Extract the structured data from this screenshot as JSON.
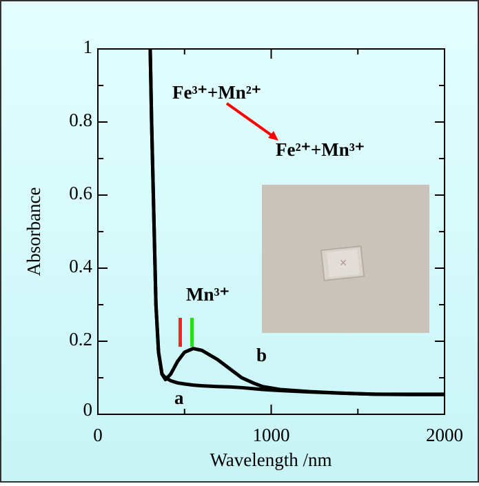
{
  "chart_data": {
    "type": "line",
    "xlabel": "Wavelength /nm",
    "ylabel": "Absorbance",
    "xlim": [
      0,
      2000
    ],
    "xticks": [
      0,
      1000,
      2000
    ],
    "ylim": [
      0,
      1
    ],
    "yticks": [
      0,
      0.2,
      0.4,
      0.6,
      0.8,
      1
    ],
    "x": [
      300,
      310,
      320,
      335,
      350,
      370,
      390,
      420,
      460,
      500,
      550,
      600,
      690,
      760,
      830,
      900,
      950,
      1050,
      1225,
      1400,
      1600,
      1800,
      2000
    ],
    "series": [
      {
        "name": "a",
        "color": "#000000",
        "values": [
          1.05,
          0.8,
          0.6,
          0.3,
          0.17,
          0.11,
          0.1,
          0.092,
          0.086,
          0.083,
          0.08,
          0.078,
          0.076,
          0.075,
          0.073,
          0.07,
          0.068,
          0.065,
          0.061,
          0.058,
          0.055,
          0.054,
          0.054
        ]
      },
      {
        "name": "b",
        "color": "#000000",
        "values": [
          1.05,
          0.8,
          0.6,
          0.3,
          0.17,
          0.11,
          0.095,
          0.11,
          0.145,
          0.17,
          0.18,
          0.175,
          0.15,
          0.125,
          0.1,
          0.085,
          0.076,
          0.068,
          0.062,
          0.058,
          0.055,
          0.055,
          0.055
        ]
      }
    ],
    "annotations": [
      "Fe³⁺+Mn²⁺",
      "Fe²⁺+Mn³⁺",
      "Mn³⁺"
    ]
  }
}
